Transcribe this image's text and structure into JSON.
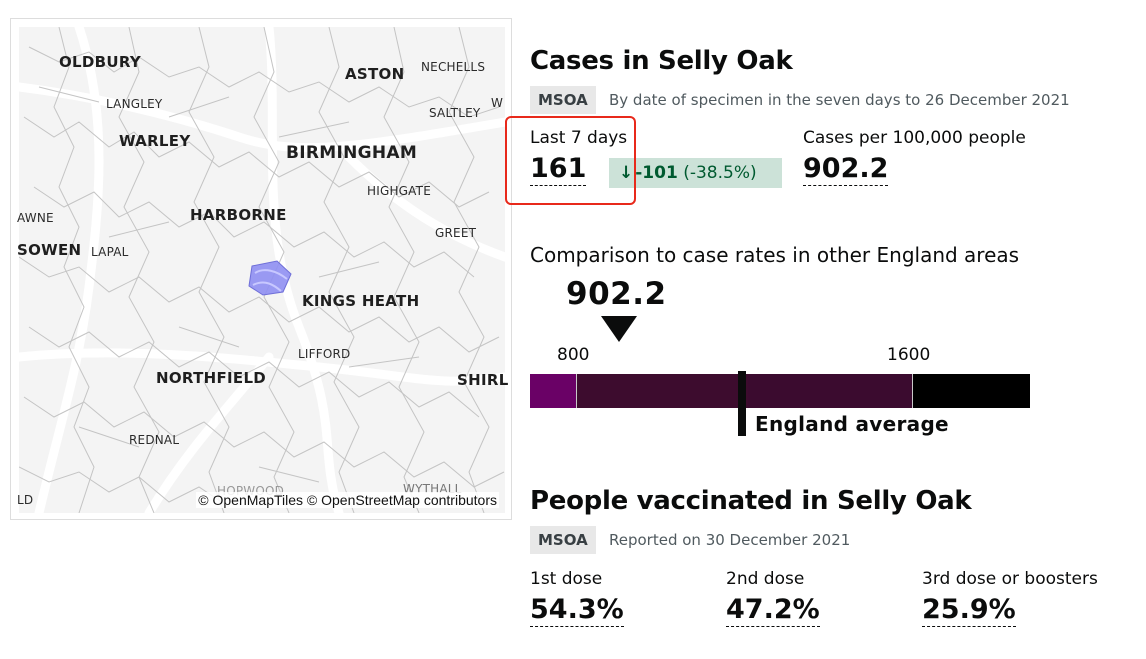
{
  "map": {
    "places_bold": [
      "OLDBURY",
      "ASTON",
      "WARLEY",
      "BIRMINGHAM",
      "HARBORNE",
      "SOWEN",
      "KINGS HEATH",
      "NORTHFIELD",
      "SHIRL"
    ],
    "places_small": [
      "NECHELLS",
      "LANGLEY",
      "SALTLEY",
      "W",
      "HIGHGATE",
      "AWNE",
      "GREET",
      "LAPAL",
      "LIFFORD",
      "REDNAL",
      "LD",
      "HOPWOOD",
      "WYTHALL"
    ],
    "credit": "© OpenMapTiles © OpenStreetMap contributors",
    "highlight_color": "#8f8ff2"
  },
  "cases": {
    "title": "Cases in Selly Oak",
    "tag": "MSOA",
    "note": "By date of specimen in the seven days to 26 December 2021",
    "last7_label": "Last 7 days",
    "last7_value": "161",
    "change_arrow": "↓",
    "change_value": "-101",
    "change_pct": "(-38.5%)",
    "rate_label": "Cases per 100,000 people",
    "rate_value": "902.2"
  },
  "comparison": {
    "heading": "Comparison to case rates in other England areas",
    "marker_value": "902.2",
    "tick_low": "800",
    "tick_high": "1600",
    "average_label": "England average",
    "scale_colors": [
      "#6a0166",
      "#3d0c2e",
      "#3d0c2e",
      "#3b0b2f",
      "#000000"
    ]
  },
  "vaccinations": {
    "title": "People vaccinated in Selly Oak",
    "tag": "MSOA",
    "note": "Reported on 30 December 2021",
    "dose1_label": "1st dose",
    "dose1_value": "54.3%",
    "dose2_label": "2nd dose",
    "dose2_value": "47.2%",
    "dose3_label": "3rd dose or boosters",
    "dose3_value": "25.9%"
  },
  "colors": {
    "increase_bg": "#cce2d8",
    "increase_text": "#005a30",
    "annotation_red": "#e8291b"
  }
}
